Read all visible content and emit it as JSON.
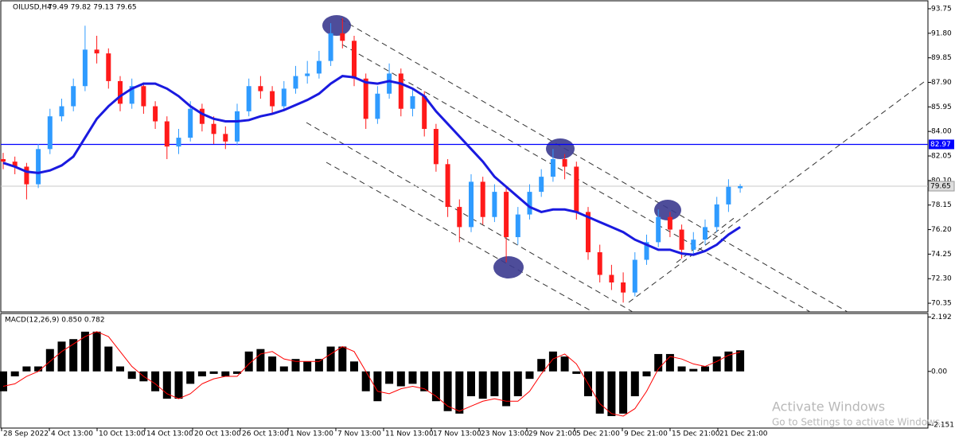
{
  "chart_data": {
    "type": "candlestick",
    "title": "OILUSD,H4",
    "ohlc_text": "79.49 79.82 79.13 79.65",
    "x_labels": [
      "28 Sep 2022",
      "4 Oct 13:00",
      "10 Oct 13:00",
      "14 Oct 13:00",
      "20 Oct 13:00",
      "26 Oct 13:00",
      "1 Nov 13:00",
      "7 Nov 13:00",
      "11 Nov 13:00",
      "17 Nov 13:00",
      "23 Nov 13:00",
      "29 Nov 21:00",
      "5 Dec 21:00",
      "9 Dec 21:00",
      "15 Dec 21:00",
      "21 Dec 21:00"
    ],
    "open": [
      81.8,
      81.6,
      81.2,
      79.8,
      82.6,
      85.2,
      86.0,
      87.6,
      90.5,
      90.2,
      88.0,
      86.2,
      87.6,
      86.0,
      84.8,
      82.8,
      83.5,
      85.8,
      84.6,
      83.8,
      83.2,
      85.6,
      87.6,
      87.2,
      86.0,
      87.4,
      88.4,
      88.6,
      89.6,
      91.8,
      91.2,
      88.2,
      85.0,
      87.0,
      88.6,
      85.8,
      86.8,
      84.2,
      81.4,
      78.0,
      76.4,
      80.0,
      77.2,
      79.2,
      75.6,
      77.4,
      79.2,
      80.4,
      81.8,
      81.2,
      77.6,
      74.4,
      72.6,
      72.0,
      71.2,
      73.8,
      75.2,
      77.2,
      76.2,
      74.6,
      75.4,
      76.4,
      78.2,
      79.49
    ],
    "high": [
      82.3,
      82.0,
      81.5,
      83.0,
      85.8,
      86.6,
      88.2,
      92.4,
      91.6,
      90.6,
      88.4,
      88.2,
      87.9,
      86.4,
      85.2,
      84.2,
      86.4,
      86.2,
      85.2,
      84.4,
      86.2,
      88.2,
      88.4,
      87.6,
      88.0,
      89.2,
      89.6,
      90.4,
      92.6,
      93.0,
      91.6,
      88.6,
      87.6,
      89.4,
      89.0,
      87.4,
      87.2,
      84.6,
      81.8,
      78.6,
      80.6,
      80.4,
      79.8,
      79.6,
      78.0,
      79.8,
      81.0,
      82.6,
      82.2,
      81.6,
      78.0,
      75.0,
      73.4,
      72.8,
      74.4,
      75.8,
      77.8,
      77.6,
      76.6,
      76.0,
      77.0,
      78.8,
      80.2,
      79.82
    ],
    "low": [
      81.0,
      80.6,
      78.6,
      79.5,
      82.2,
      84.8,
      85.6,
      87.2,
      89.4,
      87.4,
      85.6,
      85.8,
      85.4,
      84.2,
      81.8,
      82.2,
      83.2,
      84.0,
      83.0,
      82.6,
      82.9,
      85.2,
      86.6,
      85.4,
      85.6,
      87.0,
      87.8,
      88.2,
      89.2,
      90.6,
      87.6,
      84.2,
      84.6,
      86.6,
      85.2,
      85.2,
      83.6,
      80.8,
      77.2,
      75.2,
      76.0,
      76.6,
      76.8,
      73.6,
      75.0,
      77.0,
      78.8,
      80.0,
      80.2,
      77.0,
      73.8,
      72.0,
      71.4,
      70.4,
      70.9,
      73.4,
      74.8,
      75.6,
      73.9,
      74.2,
      75.0,
      76.0,
      77.6,
      79.13
    ],
    "close": [
      81.6,
      81.2,
      79.8,
      82.6,
      85.2,
      86.0,
      87.6,
      90.5,
      90.2,
      88.0,
      86.2,
      87.6,
      86.0,
      84.8,
      82.8,
      83.5,
      85.8,
      84.6,
      83.8,
      83.2,
      85.6,
      87.6,
      87.2,
      86.0,
      87.4,
      88.4,
      88.6,
      89.6,
      91.8,
      91.2,
      88.2,
      85.0,
      87.0,
      88.6,
      85.8,
      86.8,
      84.2,
      81.4,
      78.0,
      76.4,
      80.0,
      77.2,
      79.2,
      75.6,
      77.4,
      79.2,
      80.4,
      81.8,
      81.2,
      77.6,
      74.4,
      72.6,
      72.0,
      71.2,
      73.8,
      75.2,
      77.2,
      76.2,
      74.6,
      75.4,
      76.4,
      78.2,
      79.6,
      79.65
    ],
    "up_color": "#2f9bff",
    "down_color": "#ff1a1a",
    "ma": {
      "color": "#1a1adf",
      "values": [
        81.5,
        81.2,
        80.8,
        80.7,
        80.9,
        81.3,
        82.0,
        83.5,
        85.0,
        86.0,
        86.8,
        87.4,
        87.8,
        87.8,
        87.4,
        86.8,
        86.0,
        85.4,
        85.0,
        84.8,
        84.8,
        84.9,
        85.2,
        85.4,
        85.7,
        86.1,
        86.5,
        87.0,
        87.8,
        88.4,
        88.3,
        87.9,
        87.8,
        88.0,
        87.8,
        87.4,
        86.8,
        85.6,
        84.6,
        83.6,
        82.6,
        81.6,
        80.4,
        79.6,
        78.8,
        78.0,
        77.6,
        77.8,
        77.8,
        77.6,
        77.2,
        76.8,
        76.4,
        76.0,
        75.4,
        75.0,
        74.6,
        74.6,
        74.3,
        74.2,
        74.5,
        75.0,
        75.8,
        76.4
      ]
    },
    "hline": {
      "value": 82.97,
      "color": "#0000ff"
    },
    "ylim": [
      69.66,
      94.38
    ],
    "yticks": [
      {
        "value": 93.75,
        "label": "93.75"
      },
      {
        "value": 91.8,
        "label": "91.80"
      },
      {
        "value": 89.85,
        "label": "89.85"
      },
      {
        "value": 87.9,
        "label": "87.90"
      },
      {
        "value": 85.95,
        "label": "85.95"
      },
      {
        "value": 84,
        "label": "84.00"
      },
      {
        "value": 82.05,
        "label": "82.05"
      },
      {
        "value": 80.1,
        "label": "80.10"
      },
      {
        "value": 78.15,
        "label": "78.15"
      },
      {
        "value": 76.2,
        "label": "76.20"
      },
      {
        "value": 74.25,
        "label": "74.25"
      },
      {
        "value": 72.3,
        "label": "72.30"
      },
      {
        "value": 70.35,
        "label": "70.35"
      }
    ],
    "indicator": {
      "type": "macd",
      "label": "MACD(12,26,9) 0.850 0.782",
      "histogram": [
        -0.8,
        -0.2,
        0.2,
        0.2,
        0.9,
        1.2,
        1.3,
        1.6,
        1.6,
        1.0,
        0.2,
        -0.3,
        -0.4,
        -0.8,
        -1.1,
        -1.1,
        -0.5,
        -0.2,
        -0.1,
        -0.2,
        -0.1,
        0.8,
        0.9,
        0.6,
        0.2,
        0.5,
        0.4,
        0.5,
        1.0,
        1.0,
        0.4,
        -0.8,
        -1.2,
        -0.5,
        -0.6,
        -0.5,
        -0.8,
        -1.2,
        -1.6,
        -1.7,
        -1.0,
        -1.1,
        -1.0,
        -1.4,
        -1.0,
        -0.3,
        0.5,
        0.8,
        0.6,
        -0.1,
        -1.0,
        -1.7,
        -1.8,
        -1.7,
        -1.0,
        -0.2,
        0.7,
        0.7,
        0.2,
        0.1,
        0.2,
        0.6,
        0.8,
        0.85
      ],
      "signal": [
        -0.6,
        -0.5,
        -0.2,
        0.0,
        0.4,
        0.8,
        1.1,
        1.4,
        1.6,
        1.4,
        0.8,
        0.2,
        -0.2,
        -0.5,
        -0.9,
        -1.1,
        -0.9,
        -0.5,
        -0.3,
        -0.2,
        -0.2,
        0.3,
        0.7,
        0.8,
        0.5,
        0.4,
        0.4,
        0.4,
        0.7,
        1.0,
        0.8,
        0.0,
        -0.8,
        -0.9,
        -0.7,
        -0.6,
        -0.7,
        -1.0,
        -1.4,
        -1.6,
        -1.4,
        -1.2,
        -1.1,
        -1.2,
        -1.2,
        -0.8,
        -0.1,
        0.5,
        0.7,
        0.3,
        -0.5,
        -1.3,
        -1.7,
        -1.8,
        -1.5,
        -0.8,
        0.1,
        0.6,
        0.5,
        0.3,
        0.2,
        0.4,
        0.65,
        0.782
      ],
      "histogram_color": "#000000",
      "signal_color": "#ff0000",
      "ylim": [
        -2.25,
        2.3
      ],
      "yticks": [
        2.192,
        {
          "value": 0,
          "label": "0.00"
        },
        -2.151
      ]
    },
    "watermark": {
      "title": "Activate Windows",
      "subtitle": "Go to Settings to activate Windows."
    }
  }
}
